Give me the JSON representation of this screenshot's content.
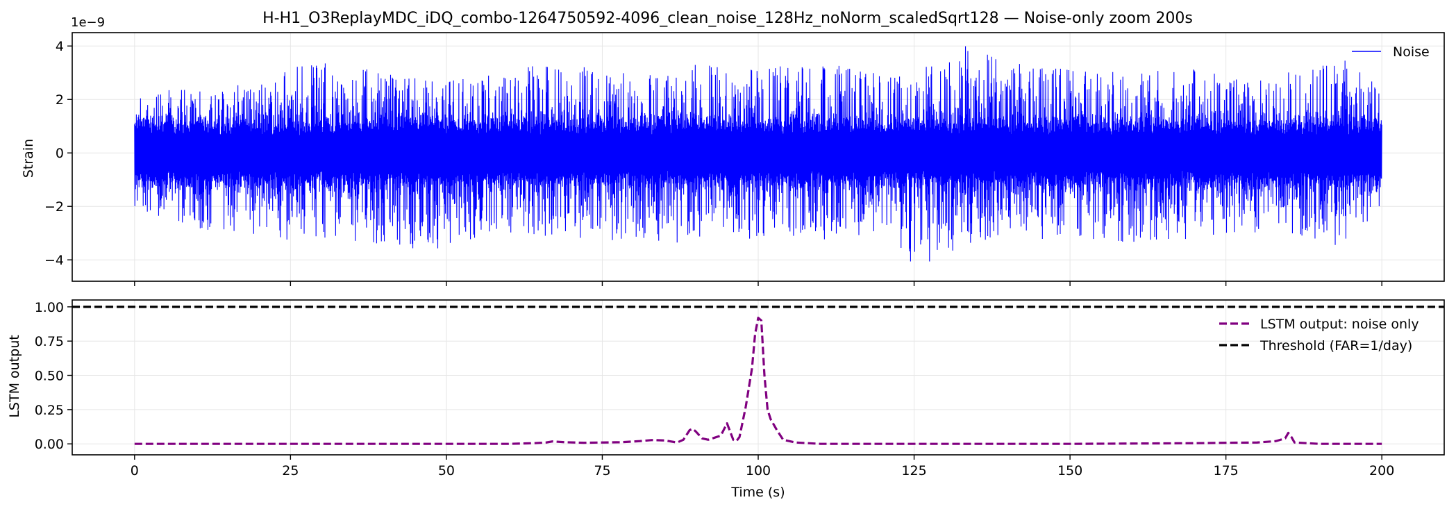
{
  "title": "H-H1_O3ReplayMDC_iDQ_combo-1264750592-4096_clean_noise_128Hz_noNorm_scaledSqrt128 — Noise-only zoom 200s",
  "chart_data": [
    {
      "type": "line",
      "ylabel": "Strain",
      "offset_label": "1e−9",
      "xlim": [
        -10,
        210
      ],
      "ylim": [
        -4.8,
        4.5
      ],
      "y_scale_factor": 1e-09,
      "xticks": [
        0,
        25,
        50,
        75,
        100,
        125,
        150,
        175,
        200
      ],
      "yticks": [
        -4,
        -2,
        0,
        2,
        4
      ],
      "ytick_labels": [
        "−4",
        "−2",
        "0",
        "2",
        "4"
      ],
      "grid": true,
      "legend": "top-right",
      "series": [
        {
          "name": "Noise",
          "color": "#0000ff",
          "x_range": [
            0,
            200
          ],
          "envelope_x": [
            0,
            10,
            20,
            30,
            40,
            50,
            60,
            70,
            80,
            90,
            100,
            110,
            120,
            125,
            130,
            132,
            140,
            150,
            160,
            170,
            180,
            190,
            195,
            200
          ],
          "envelope_upper": [
            2.2,
            2.6,
            2.7,
            3.6,
            3.0,
            2.8,
            3.1,
            3.5,
            2.9,
            3.3,
            3.2,
            3.4,
            3.0,
            3.3,
            3.6,
            4.1,
            3.4,
            3.2,
            3.0,
            3.2,
            2.8,
            3.3,
            3.8,
            2.2
          ],
          "envelope_lower": [
            -2.0,
            -3.0,
            -3.2,
            -3.3,
            -3.7,
            -3.6,
            -3.0,
            -3.2,
            -3.3,
            -3.4,
            -3.2,
            -3.3,
            -3.0,
            -4.4,
            -3.9,
            -3.6,
            -3.4,
            -3.1,
            -3.5,
            -3.2,
            -3.0,
            -3.4,
            -3.6,
            -2.0
          ]
        }
      ]
    },
    {
      "type": "line",
      "xlabel": "Time (s)",
      "ylabel": "LSTM output",
      "xlim": [
        -10,
        210
      ],
      "ylim": [
        -0.08,
        1.05
      ],
      "xticks": [
        0,
        25,
        50,
        75,
        100,
        125,
        150,
        175,
        200
      ],
      "yticks": [
        0.0,
        0.25,
        0.5,
        0.75,
        1.0
      ],
      "ytick_labels": [
        "0.00",
        "0.25",
        "0.50",
        "0.75",
        "1.00"
      ],
      "grid": true,
      "legend": "top-right",
      "series": [
        {
          "name": "LSTM output: noise only",
          "color": "#800080",
          "style": "dashed",
          "x": [
            0,
            20,
            40,
            60,
            64,
            66,
            67,
            69,
            72,
            78,
            81,
            83,
            85,
            87,
            88,
            89,
            89.5,
            90,
            91,
            92,
            94,
            95,
            96,
            96.5,
            97,
            98,
            99,
            99.5,
            100,
            100.5,
            101,
            101.5,
            102,
            103,
            104,
            106,
            110,
            150,
            170,
            175,
            180,
            183,
            184.5,
            185,
            185.5,
            186,
            190,
            200
          ],
          "y": [
            0.0,
            0.0,
            0.0,
            0.0,
            0.005,
            0.01,
            0.018,
            0.012,
            0.008,
            0.012,
            0.02,
            0.028,
            0.025,
            0.01,
            0.03,
            0.1,
            0.11,
            0.09,
            0.04,
            0.03,
            0.06,
            0.15,
            0.03,
            0.02,
            0.05,
            0.27,
            0.55,
            0.8,
            0.92,
            0.9,
            0.5,
            0.25,
            0.18,
            0.1,
            0.03,
            0.01,
            0.0,
            0.0,
            0.005,
            0.008,
            0.01,
            0.02,
            0.04,
            0.08,
            0.05,
            0.01,
            0.0,
            0.0
          ]
        },
        {
          "name": "Threshold (FAR=1/day)",
          "color": "#000000",
          "style": "dashed",
          "y_constant": 1.0
        }
      ]
    }
  ]
}
